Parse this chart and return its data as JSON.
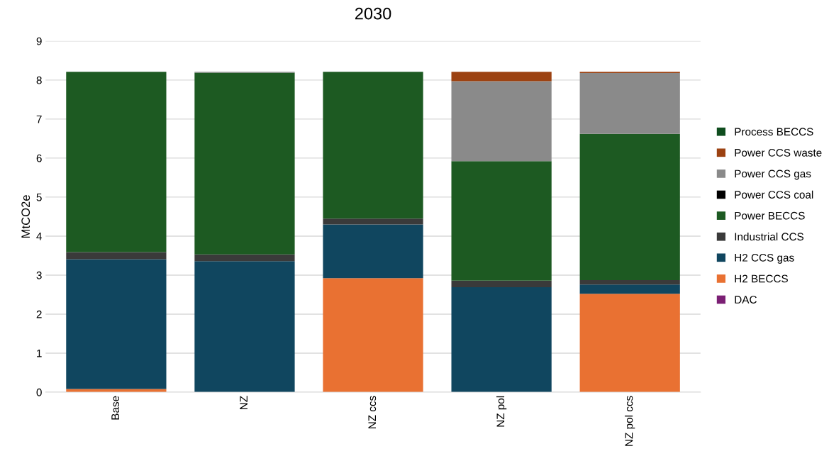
{
  "chart_data": {
    "type": "bar",
    "title": "2030",
    "ylabel": "MtCO2e",
    "stacked": true,
    "grid": "y",
    "legend": "right",
    "categories": [
      "Base",
      "NZ",
      "NZ ccs",
      "NZ pol",
      "NZ pol ccs"
    ],
    "ylim": [
      0,
      9
    ],
    "yticks": [
      0,
      1,
      2,
      3,
      4,
      5,
      6,
      7,
      8,
      9
    ],
    "series": [
      {
        "name": "DAC",
        "color": "#7b1f74",
        "values": [
          0,
          0,
          0,
          0,
          0
        ]
      },
      {
        "name": "H2 BECCS",
        "color": "#e97132",
        "values": [
          0.08,
          0,
          2.92,
          0,
          2.52
        ]
      },
      {
        "name": "H2 CCS gas",
        "color": "#10465f",
        "values": [
          3.33,
          3.36,
          1.38,
          2.69,
          0.24
        ]
      },
      {
        "name": "Industrial CCS",
        "color": "#3a3a3a",
        "values": [
          0.18,
          0.17,
          0.15,
          0.17,
          0.11
        ]
      },
      {
        "name": "Power BECCS",
        "color": "#1d5a22",
        "values": [
          4.62,
          4.66,
          3.76,
          3.06,
          3.75
        ]
      },
      {
        "name": "Power CCS coal",
        "color": "#000000",
        "values": [
          0,
          0,
          0,
          0,
          0
        ]
      },
      {
        "name": "Power CCS gas",
        "color": "#8a8a8a",
        "values": [
          0,
          0.02,
          0,
          2.05,
          1.56
        ]
      },
      {
        "name": "Power CCS waste",
        "color": "#9c4212",
        "values": [
          0,
          0,
          0,
          0.24,
          0.03
        ]
      },
      {
        "name": "Process BECCS",
        "color": "#0f4d1e",
        "values": [
          0,
          0,
          0,
          0,
          0
        ]
      }
    ]
  }
}
